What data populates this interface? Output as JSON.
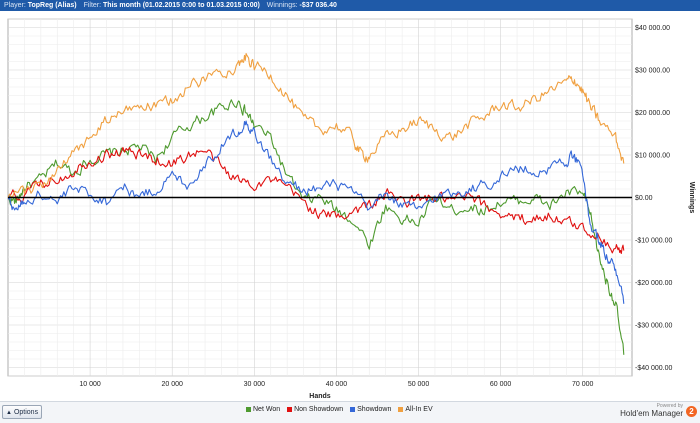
{
  "header": {
    "player_key": "Player:",
    "player_value": "TopReg (Alias)",
    "filter_key": "Filter:",
    "filter_value": "This month (01.02.2015 0:00 to 01.03.2015 0:00)",
    "winnings_key": "Winnings:",
    "winnings_value": "-$37 036.40"
  },
  "footer": {
    "options_label": "Options",
    "brand_top": "Powered by",
    "brand_name": "Hold'em Manager",
    "brand_logo": "2"
  },
  "colors": {
    "net_won": "#4e9a2f",
    "non_showdown": "#e01010",
    "showdown": "#3568d8",
    "all_in_ev": "#f0a040"
  },
  "chart_data": {
    "type": "line",
    "xlabel": "Hands",
    "ylabel": "Winnings",
    "xlim": [
      0,
      76000
    ],
    "ylim": [
      -42000,
      42000
    ],
    "x_ticks": [
      10000,
      20000,
      30000,
      40000,
      50000,
      60000,
      70000
    ],
    "x_tick_labels": [
      "10 000",
      "20 000",
      "30 000",
      "40 000",
      "50 000",
      "60 000",
      "70 000"
    ],
    "y_ticks": [
      40000,
      30000,
      20000,
      10000,
      0,
      -10000,
      -20000,
      -30000,
      -40000
    ],
    "y_tick_labels": [
      "$40 000.00",
      "$30 000.00",
      "$20 000.00",
      "$10 000.00",
      "$0.00",
      "-$10 000.00",
      "-$20 000.00",
      "-$30 000.00",
      "-$40 000.00"
    ],
    "grid": true,
    "legend_position": "bottom",
    "series": [
      {
        "name": "Net Won",
        "color": "#4e9a2f",
        "x": [
          0,
          1000,
          2000,
          4000,
          6000,
          8000,
          10000,
          12000,
          14000,
          16000,
          18000,
          20000,
          22000,
          24000,
          26000,
          28000,
          29000,
          30000,
          32000,
          34000,
          36000,
          38000,
          40000,
          42000,
          44000,
          46000,
          48000,
          50000,
          52000,
          54000,
          56000,
          58000,
          60000,
          62000,
          64000,
          66000,
          68000,
          70000,
          71000,
          72000,
          73000,
          74000,
          75000
        ],
        "y": [
          0,
          -1000,
          2500,
          4000,
          8000,
          6000,
          9000,
          10000,
          11000,
          12000,
          9000,
          14000,
          17000,
          19000,
          21000,
          23000,
          20000,
          17000,
          14000,
          5000,
          -1000,
          0,
          -3000,
          -5000,
          -11000,
          -2000,
          -5000,
          -6000,
          0,
          -3000,
          -2000,
          -3000,
          -1000,
          -1000,
          0,
          -2000,
          1000,
          1000,
          -5000,
          -14000,
          -20000,
          -25000,
          -37000
        ]
      },
      {
        "name": "Non Showdown",
        "color": "#e01010",
        "x": [
          0,
          2000,
          4000,
          6000,
          8000,
          10000,
          12000,
          14000,
          16000,
          18000,
          20000,
          22000,
          24000,
          26000,
          28000,
          30000,
          32000,
          34000,
          36000,
          38000,
          40000,
          42000,
          44000,
          46000,
          48000,
          50000,
          52000,
          54000,
          56000,
          58000,
          60000,
          62000,
          64000,
          66000,
          68000,
          70000,
          72000,
          74000,
          75000
        ],
        "y": [
          0,
          500,
          3000,
          4500,
          6500,
          9000,
          10000,
          11000,
          10000,
          9000,
          8000,
          10000,
          11000,
          7000,
          4000,
          3500,
          4000,
          2000,
          -1000,
          -4000,
          -4500,
          -3000,
          -2000,
          1000,
          -1000,
          -500,
          0,
          -1000,
          0,
          -2000,
          -3500,
          -5000,
          -5000,
          -4000,
          -6000,
          -7000,
          -9000,
          -12000,
          -12500
        ]
      },
      {
        "name": "Showdown",
        "color": "#3568d8",
        "x": [
          0,
          1000,
          2000,
          4000,
          6000,
          8000,
          10000,
          12000,
          14000,
          16000,
          18000,
          20000,
          22000,
          24000,
          26000,
          28000,
          29000,
          30000,
          32000,
          34000,
          36000,
          38000,
          40000,
          42000,
          44000,
          46000,
          48000,
          50000,
          52000,
          54000,
          56000,
          58000,
          60000,
          62000,
          64000,
          66000,
          68000,
          69000,
          70000,
          71000,
          72000,
          73000,
          74000,
          75000
        ],
        "y": [
          0,
          -3000,
          -1000,
          1000,
          -1000,
          2000,
          1000,
          -1000,
          3000,
          0,
          2000,
          5000,
          3000,
          8000,
          12000,
          16000,
          18000,
          15000,
          9000,
          3000,
          2000,
          2000,
          3000,
          1000,
          -3000,
          1000,
          -2000,
          -3000,
          0,
          1000,
          2000,
          3000,
          5000,
          7000,
          6000,
          7000,
          9000,
          9500,
          5000,
          -7000,
          -10000,
          -14000,
          -17000,
          -25000
        ]
      },
      {
        "name": "All-In EV",
        "color": "#f0a040",
        "x": [
          0,
          2000,
          4000,
          6000,
          8000,
          10000,
          12000,
          14000,
          16000,
          18000,
          20000,
          22000,
          24000,
          26000,
          28000,
          29000,
          30000,
          32000,
          34000,
          36000,
          38000,
          40000,
          42000,
          43000,
          44000,
          46000,
          48000,
          50000,
          52000,
          54000,
          56000,
          58000,
          60000,
          62000,
          64000,
          66000,
          68000,
          69000,
          70000,
          71000,
          72000,
          74000,
          75000
        ],
        "y": [
          0,
          1000,
          3000,
          6000,
          10000,
          14000,
          18000,
          20000,
          22000,
          21000,
          23000,
          26000,
          28000,
          30000,
          31000,
          33000,
          31000,
          29000,
          24000,
          18000,
          16000,
          17000,
          14000,
          10000,
          10000,
          14000,
          16000,
          18000,
          16000,
          14000,
          17000,
          19000,
          22000,
          21000,
          23000,
          25000,
          27000,
          28000,
          25000,
          21000,
          18000,
          14000,
          8000
        ]
      }
    ]
  }
}
